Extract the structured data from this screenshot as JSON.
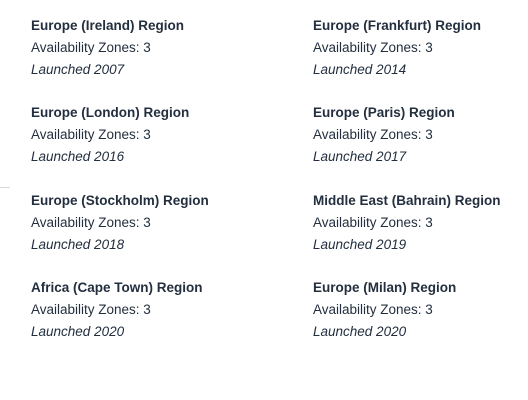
{
  "regions": [
    {
      "title": "Europe (Ireland) Region",
      "zones": "Availability Zones: 3",
      "launched": "Launched 2007"
    },
    {
      "title": "Europe (Frankfurt) Region",
      "zones": "Availability Zones: 3",
      "launched": "Launched 2014"
    },
    {
      "title": "Europe (London) Region",
      "zones": "Availability Zones: 3",
      "launched": "Launched 2016"
    },
    {
      "title": "Europe (Paris) Region",
      "zones": "Availability Zones: 3",
      "launched": "Launched 2017"
    },
    {
      "title": "Europe (Stockholm) Region",
      "zones": "Availability Zones: 3",
      "launched": "Launched 2018"
    },
    {
      "title": "Middle East (Bahrain) Region",
      "zones": "Availability Zones: 3",
      "launched": "Launched 2019"
    },
    {
      "title": "Africa (Cape Town) Region",
      "zones": "Availability Zones: 3",
      "launched": "Launched 2020"
    },
    {
      "title": "Europe (Milan) Region",
      "zones": "Availability Zones: 3",
      "launched": "Launched 2020"
    }
  ]
}
